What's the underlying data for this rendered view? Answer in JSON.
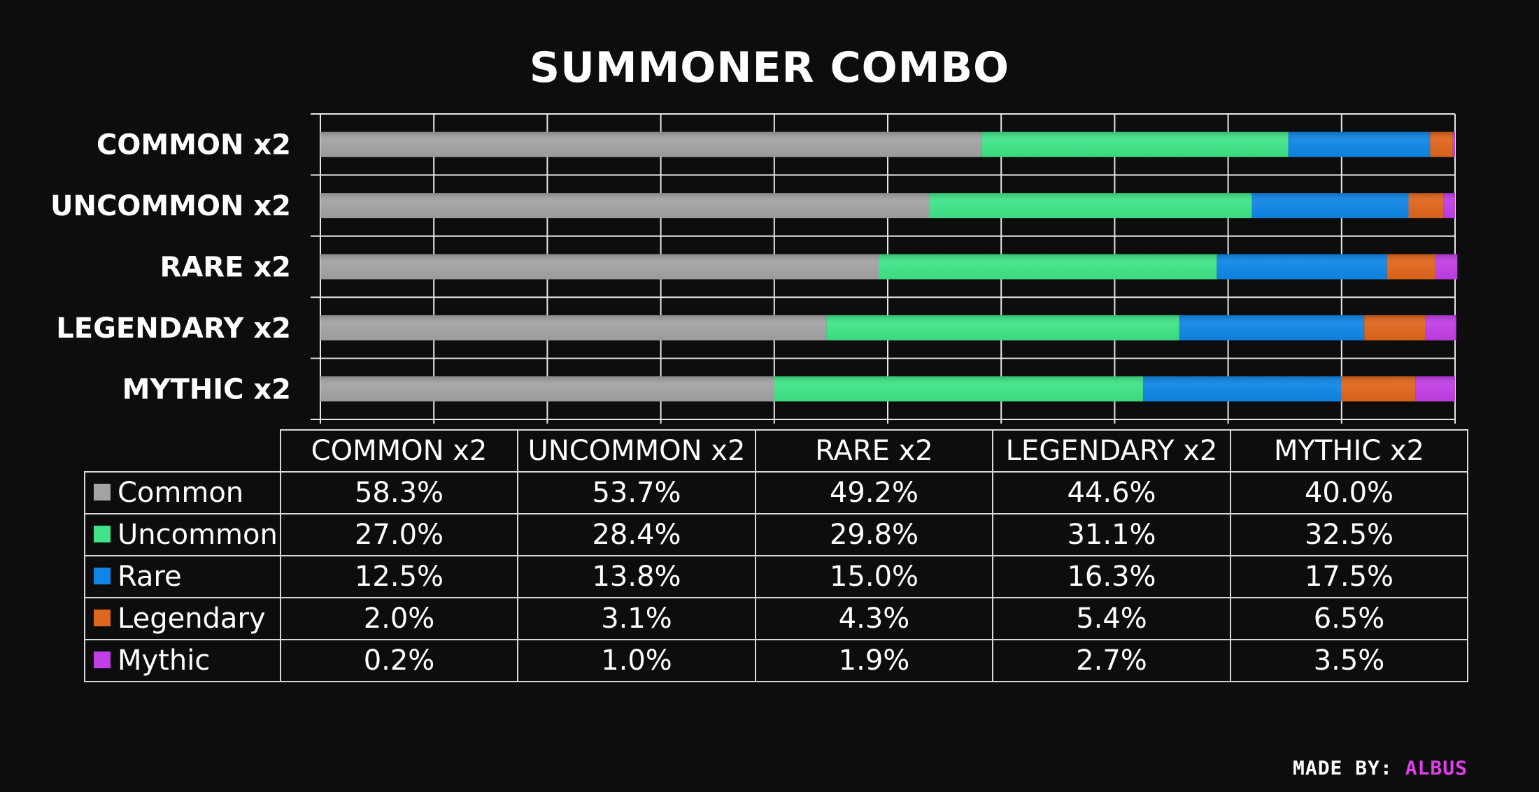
{
  "chart_data": {
    "type": "bar",
    "orientation": "horizontal",
    "stacked": true,
    "title": "SUMMONER COMBO",
    "categories": [
      "COMMON x2",
      "UNCOMMON x2",
      "RARE x2",
      "LEGENDARY x2",
      "MYTHIC x2"
    ],
    "xlim": [
      0,
      100
    ],
    "grid": true,
    "series": [
      {
        "name": "Common",
        "color": "#a3a3a3",
        "values": [
          58.3,
          53.7,
          49.2,
          44.6,
          40.0
        ],
        "labels": [
          "58.3%",
          "53.7%",
          "49.2%",
          "44.6%",
          "40.0%"
        ]
      },
      {
        "name": "Uncommon",
        "color": "#3fe487",
        "values": [
          27.0,
          28.4,
          29.8,
          31.1,
          32.5
        ],
        "labels": [
          "27.0%",
          "28.4%",
          "29.8%",
          "31.1%",
          "32.5%"
        ]
      },
      {
        "name": "Rare",
        "color": "#0f86e6",
        "values": [
          12.5,
          13.8,
          15.0,
          16.3,
          17.5
        ],
        "labels": [
          "12.5%",
          "13.8%",
          "15.0%",
          "16.3%",
          "17.5%"
        ]
      },
      {
        "name": "Legendary",
        "color": "#e0661c",
        "values": [
          2.0,
          3.1,
          4.3,
          5.4,
          6.5
        ],
        "labels": [
          "2.0%",
          "3.1%",
          "4.3%",
          "5.4%",
          "6.5%"
        ]
      },
      {
        "name": "Mythic",
        "color": "#c23ee6",
        "values": [
          0.2,
          1.0,
          1.9,
          2.7,
          3.5
        ],
        "labels": [
          "0.2%",
          "1.0%",
          "1.9%",
          "2.7%",
          "3.5%"
        ]
      }
    ]
  },
  "credit": {
    "label": "MADE BY:",
    "name": "ALBUS"
  }
}
